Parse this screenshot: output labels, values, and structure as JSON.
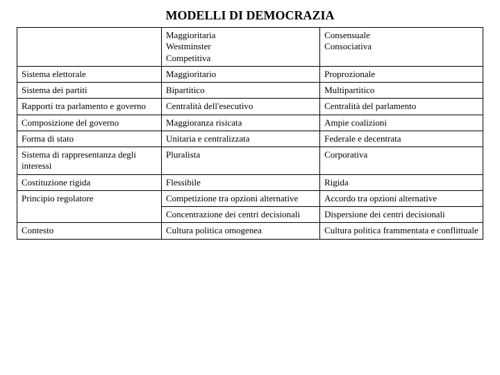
{
  "title": "MODELLI DI DEMOCRAZIA",
  "table": {
    "border_color": "#000000",
    "background_color": "#ffffff",
    "text_color": "#000000",
    "font_family": "Comic Sans MS",
    "rows": [
      {
        "c1": "",
        "c2a": "Maggioritaria",
        "c2b": "Westminster",
        "c2c": "Competitiva",
        "c3a": "Consensuale",
        "c3b": "Consociativa"
      },
      {
        "c1": "Sistema elettorale",
        "c2": "Maggioritario",
        "c3": "Proprozionale"
      },
      {
        "c1": "Sistema dei partiti",
        "c2": "Bipartitico",
        "c3": "Multipartitico"
      },
      {
        "c1": "Rapporti tra parlamento e governo",
        "c2": "Centralità dell'esecutivo",
        "c3": "Centralità del parlamento"
      },
      {
        "c1": "Composizione del governo",
        "c2": "Maggioranza risicata",
        "c3": "Ampie coalizioni"
      },
      {
        "c1": "Forma di stato",
        "c2": "Unitaria e centralizzata",
        "c3": "Federale e decentrata"
      },
      {
        "c1": "Sistema di rappresentanza degli interessi",
        "c2": "Pluralista",
        "c3": "Corporativa"
      },
      {
        "c1": "Costituzione rigida",
        "c2": "Flessibile",
        "c3": "Rigida"
      },
      {
        "c1": "Principio regolatore",
        "c2a": "Competizione tra opzioni alternative",
        "c2b": "Concentrazione dei centri decisionali",
        "c3a": "Accordo tra opzioni alternative",
        "c3b": "Dispersione dei centri decisionali"
      },
      {
        "c1": "Contesto",
        "c2": "Cultura politica omogenea",
        "c3": "Cultura politica frammentata e conflittuale"
      }
    ]
  }
}
